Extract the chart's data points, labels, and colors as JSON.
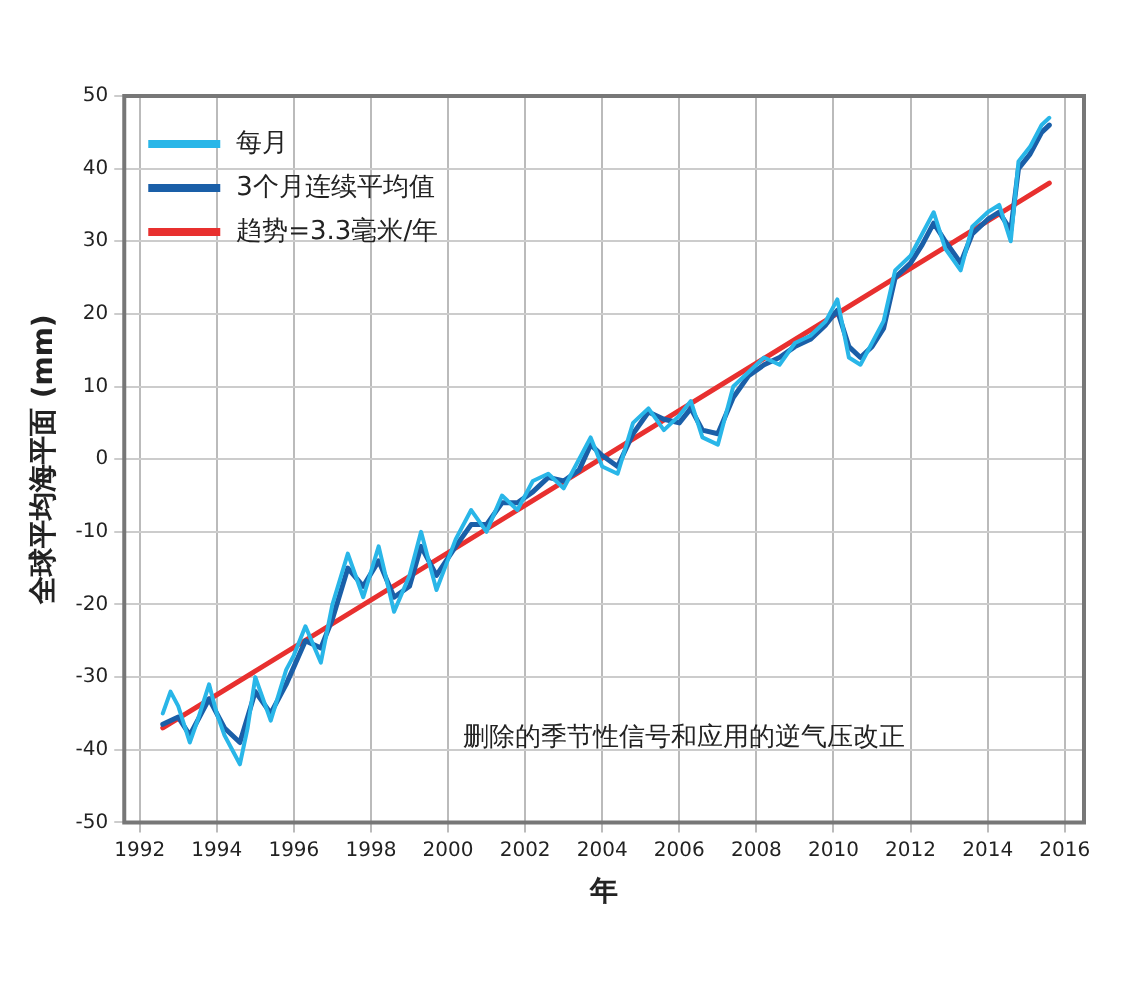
{
  "chart_data": {
    "type": "line",
    "xlabel": "年",
    "ylabel": "全球平均海平面 (mm)",
    "xlim": [
      1991.6,
      2016.5
    ],
    "ylim": [
      -50,
      50
    ],
    "xticks": [
      1992,
      1994,
      1996,
      1998,
      2000,
      2002,
      2004,
      2006,
      2008,
      2010,
      2012,
      2014,
      2016
    ],
    "yticks": [
      -50,
      -40,
      -30,
      -20,
      -10,
      0,
      10,
      20,
      30,
      40,
      50
    ],
    "grid": true,
    "legend": "top left",
    "marker": "none",
    "line_style": "solid",
    "annotations": [
      "删除的季节性信号和应用的逆气压改正"
    ],
    "series": [
      {
        "name": "每月",
        "color": "#29b6e8",
        "x": [
          1992.6,
          1992.8,
          1993.0,
          1993.3,
          1993.5,
          1993.8,
          1994.0,
          1994.2,
          1994.6,
          1994.8,
          1995.0,
          1995.4,
          1995.8,
          1996.0,
          1996.3,
          1996.7,
          1997.0,
          1997.4,
          1997.8,
          1998.2,
          1998.6,
          1999.0,
          1999.3,
          1999.7,
          2000.2,
          2000.6,
          2001.0,
          2001.4,
          2001.8,
          2002.2,
          2002.6,
          2003.0,
          2003.4,
          2003.7,
          2004.0,
          2004.4,
          2004.8,
          2005.2,
          2005.6,
          2006.0,
          2006.3,
          2006.6,
          2007.0,
          2007.4,
          2007.8,
          2008.2,
          2008.6,
          2009.0,
          2009.4,
          2009.8,
          2010.1,
          2010.4,
          2010.7,
          2011.0,
          2011.3,
          2011.6,
          2012.0,
          2012.3,
          2012.6,
          2012.9,
          2013.3,
          2013.6,
          2014.0,
          2014.3,
          2014.6,
          2014.8,
          2015.1,
          2015.4,
          2015.6
        ],
        "values": [
          -35,
          -32,
          -34,
          -39,
          -36,
          -31,
          -35,
          -38,
          -42,
          -37,
          -30,
          -36,
          -29,
          -27,
          -23,
          -28,
          -20,
          -13,
          -19,
          -12,
          -21,
          -16,
          -10,
          -18,
          -11,
          -7,
          -10,
          -5,
          -7,
          -3,
          -2,
          -4,
          0,
          3,
          -1,
          -2,
          5,
          7,
          4,
          6,
          8,
          3,
          2,
          10,
          12,
          14,
          13,
          16,
          17,
          19,
          22,
          14,
          13,
          16,
          19,
          26,
          28,
          31,
          34,
          29,
          26,
          32,
          34,
          35,
          30,
          41,
          43,
          46,
          47
        ]
      },
      {
        "name": "3个月连续平均值",
        "color": "#1a5fa8",
        "x": [
          1992.6,
          1993.0,
          1993.3,
          1993.8,
          1994.2,
          1994.6,
          1995.0,
          1995.4,
          1995.8,
          1996.3,
          1996.7,
          1997.0,
          1997.4,
          1997.8,
          1998.2,
          1998.6,
          1999.0,
          1999.3,
          1999.7,
          2000.2,
          2000.6,
          2001.0,
          2001.4,
          2001.8,
          2002.2,
          2002.6,
          2003.0,
          2003.4,
          2003.7,
          2004.0,
          2004.4,
          2004.8,
          2005.2,
          2005.6,
          2006.0,
          2006.3,
          2006.6,
          2007.0,
          2007.4,
          2007.8,
          2008.2,
          2008.6,
          2009.0,
          2009.4,
          2009.8,
          2010.1,
          2010.4,
          2010.7,
          2011.0,
          2011.3,
          2011.6,
          2012.0,
          2012.3,
          2012.6,
          2012.9,
          2013.3,
          2013.6,
          2014.0,
          2014.3,
          2014.6,
          2014.8,
          2015.1,
          2015.4,
          2015.6
        ],
        "values": [
          -36.5,
          -35.5,
          -38,
          -33,
          -37,
          -39,
          -32,
          -35,
          -31,
          -25,
          -26,
          -22,
          -15,
          -17.5,
          -14,
          -19,
          -17.5,
          -12,
          -16,
          -12,
          -9,
          -9,
          -6,
          -6,
          -4.5,
          -2.5,
          -3,
          -1.5,
          2,
          0.5,
          -1,
          3.5,
          6.5,
          5.5,
          5,
          7,
          4,
          3.5,
          8.5,
          11.5,
          13,
          14,
          15.5,
          16.5,
          18.5,
          20.5,
          15.5,
          14,
          15.5,
          18,
          25,
          27,
          29.5,
          32.5,
          30,
          27,
          31,
          33,
          34,
          31.5,
          40,
          42,
          45,
          46
        ]
      },
      {
        "name": "趋势=3.3毫米/年",
        "color": "#e8302f",
        "x": [
          1992.6,
          2015.6
        ],
        "values": [
          -37,
          38
        ]
      }
    ]
  }
}
